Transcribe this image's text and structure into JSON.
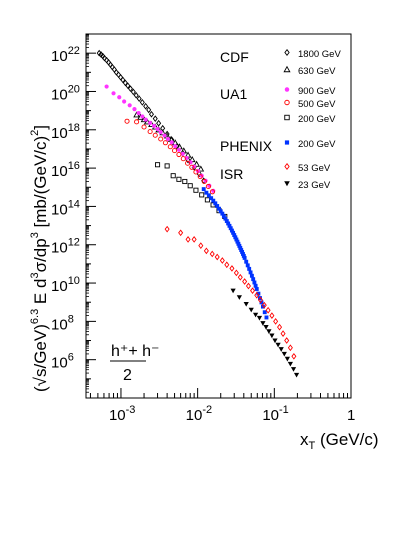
{
  "chart_data": {
    "type": "scatter",
    "title": "",
    "xlabel": "x_T (GeV/c)",
    "ylabel": "(√s/GeV)^6.3 E d³σ/dp³ [mb/(GeV/c)²]",
    "x_scale": "log",
    "y_scale": "log",
    "xlim": [
      0.00035,
      1.0
    ],
    "ylim": [
      10000.0,
      1e+23
    ],
    "grid": false,
    "legend_position": "top-right",
    "formula_label": {
      "numerator": "h⁺+ h⁻",
      "denominator": "2"
    },
    "x_ticks": [
      {
        "value": 0.001,
        "base": "10",
        "exp": "-3"
      },
      {
        "value": 0.01,
        "base": "10",
        "exp": "-2"
      },
      {
        "value": 0.1,
        "base": "10",
        "exp": "-1"
      },
      {
        "value": 1,
        "base": "1",
        "exp": ""
      }
    ],
    "y_ticks": [
      {
        "value": 1000000.0,
        "base": "10",
        "exp": "6"
      },
      {
        "value": 100000000.0,
        "base": "10",
        "exp": "8"
      },
      {
        "value": 10000000000.0,
        "base": "10",
        "exp": "10"
      },
      {
        "value": 1000000000000.0,
        "base": "10",
        "exp": "12"
      },
      {
        "value": 100000000000000.0,
        "base": "10",
        "exp": "14"
      },
      {
        "value": 1e+16,
        "base": "10",
        "exp": "16"
      },
      {
        "value": 1e+18,
        "base": "10",
        "exp": "18"
      },
      {
        "value": 1e+20,
        "base": "10",
        "exp": "20"
      },
      {
        "value": 1e+22,
        "base": "10",
        "exp": "22"
      }
    ],
    "legend_groups": [
      {
        "group": "CDF",
        "entries": [
          "cdf1800",
          "cdf630"
        ]
      },
      {
        "group": "UA1",
        "entries": [
          "ua900",
          "ua500",
          "ua200"
        ]
      },
      {
        "group": "PHENIX",
        "entries": [
          "phenix200"
        ]
      },
      {
        "group": "ISR",
        "entries": [
          "isr53",
          "isr23"
        ]
      }
    ],
    "series": [
      {
        "id": "cdf1800",
        "name": "1800 GeV",
        "marker": "open-diamond",
        "color": "#000000",
        "x": [
          0.00052,
          0.00055,
          0.00058,
          0.00061,
          0.00065,
          0.00069,
          0.00073,
          0.00077,
          0.00082,
          0.00087,
          0.00093,
          0.00099,
          0.00106,
          0.00114,
          0.00123,
          0.00133,
          0.00145,
          0.00158,
          0.00173,
          0.0019,
          0.0021,
          0.0023,
          0.0025,
          0.0028,
          0.0031,
          0.0035,
          0.004,
          0.0046,
          0.0054,
          0.0064,
          0.0075,
          0.009,
          0.0105,
          0.012
        ],
        "y": [
          1e+22,
          8.5e+21,
          7e+21,
          5.5e+21,
          4.3e+21,
          3.3e+21,
          2.5e+21,
          1.9e+21,
          1.4e+21,
          1e+21,
          7.5e+20,
          5.5e+20,
          4e+20,
          2.8e+20,
          2e+20,
          1.4e+20,
          9.5e+19,
          6.3e+19,
          4.2e+19,
          2.7e+19,
          1.7e+19,
          1.1e+19,
          6.5e+18,
          3.8e+18,
          2.2e+18,
          1.2e+18,
          6e+17,
          3e+17,
          1.4e+17,
          6e+16,
          2.6e+16,
          1.1e+16,
          5000000000000000.0,
          2200000000000000.0
        ]
      },
      {
        "id": "cdf630",
        "name": "630 GeV",
        "marker": "open-triangle",
        "color": "#000000",
        "x": [
          0.0016,
          0.0018,
          0.002,
          0.0022,
          0.0025,
          0.0028,
          0.0031,
          0.0035,
          0.004,
          0.0045,
          0.0051,
          0.0058,
          0.0066,
          0.0075,
          0.0085,
          0.0097,
          0.011
        ],
        "y": [
          6e+18,
          4.5e+18,
          3.4e+18,
          2.6e+18,
          1.9e+18,
          1.4e+18,
          1e+18,
          7e+17,
          4.8e+17,
          3.2e+17,
          2.1e+17,
          1.3e+17,
          8e+16,
          4.8e+16,
          2.8e+16,
          1.6e+16,
          9000000000000000.0
        ]
      },
      {
        "id": "ua900",
        "name": "900 GeV",
        "marker": "filled-circle",
        "color": "#ff33ff",
        "x": [
          0.00065,
          0.0008,
          0.00095,
          0.0011,
          0.0013,
          0.0015,
          0.0017,
          0.0019,
          0.0021,
          0.0024,
          0.0027,
          0.003,
          0.0033,
          0.0037,
          0.0041,
          0.0046,
          0.0051,
          0.0057,
          0.0064,
          0.0072,
          0.0081,
          0.009,
          0.0101,
          0.0113,
          0.0127,
          0.0142,
          0.016
        ],
        "y": [
          1.8e+20,
          8e+19,
          5e+19,
          3e+19,
          1.9e+19,
          1.2e+19,
          7.5e+18,
          5e+18,
          3.4e+18,
          2.3e+18,
          1.6e+18,
          1.1e+18,
          7.5e+17,
          5e+17,
          3.3e+17,
          2.2e+17,
          1.4e+17,
          9e+16,
          5.6e+16,
          3.4e+16,
          2e+16,
          1.2e+16,
          7000000000000000.0,
          4000000000000000.0,
          2200000000000000.0,
          1200000000000000.0,
          650000000000000.0
        ]
      },
      {
        "id": "ua500",
        "name": "500 GeV",
        "marker": "open-circle",
        "color": "#ff0000",
        "x": [
          0.0012,
          0.0016,
          0.002,
          0.0024,
          0.0028,
          0.0033,
          0.0038,
          0.0044,
          0.005,
          0.0057,
          0.0065,
          0.0074,
          0.0084,
          0.0095,
          0.0108,
          0.0122,
          0.0138,
          0.0156
        ],
        "y": [
          2.8e+18,
          2.6e+18,
          1.4e+18,
          8e+17,
          5.2e+17,
          3.3e+17,
          2.1e+17,
          1.3e+17,
          8.2e+16,
          5.1e+16,
          3.1e+16,
          1.8e+16,
          1.1e+16,
          6300000000000000.0,
          3600000000000000.0,
          2000000000000000.0,
          1100000000000000.0,
          580000000000000.0
        ]
      },
      {
        "id": "ua200",
        "name": "200 GeV",
        "marker": "open-square",
        "color": "#000000",
        "x": [
          0.003,
          0.004,
          0.0048,
          0.0057,
          0.0068,
          0.008,
          0.0095,
          0.0113,
          0.0134,
          0.0159,
          0.019,
          0.0226
        ],
        "y": [
          1.5e+16,
          1.3e+16,
          4000000000000000.0,
          2600000000000000.0,
          2000000000000000.0,
          1200000000000000.0,
          700000000000000.0,
          400000000000000.0,
          220000000000000.0,
          120000000000000.0,
          60000000000000.0,
          30000000000000.0
        ]
      },
      {
        "id": "phenix200",
        "name": "200 GeV",
        "marker": "filled-square",
        "color": "#0033ff",
        "x": [
          0.012,
          0.013,
          0.014,
          0.015,
          0.016,
          0.017,
          0.018,
          0.019,
          0.02,
          0.021,
          0.022,
          0.023,
          0.024,
          0.025,
          0.026,
          0.027,
          0.028,
          0.029,
          0.03,
          0.031,
          0.032,
          0.033,
          0.034,
          0.035,
          0.036,
          0.037,
          0.038,
          0.039,
          0.04,
          0.041,
          0.043,
          0.045,
          0.047,
          0.049,
          0.051,
          0.053,
          0.055,
          0.057,
          0.059,
          0.062,
          0.065,
          0.068,
          0.071,
          0.075,
          0.079
        ],
        "y": [
          800000000000000.0,
          520000000000000.0,
          380000000000000.0,
          270000000000000.0,
          200000000000000.0,
          145000000000000.0,
          105000000000000.0,
          76000000000000.0,
          56000000000000.0,
          42000000000000.0,
          31000000000000.0,
          23000000000000.0,
          17200000000000.0,
          12900000000000.0,
          9700000000000.0,
          7300000000000.0,
          5500000000000.0,
          4200000000000.0,
          3200000000000.0,
          2450000000000.0,
          1880000000000.0,
          1450000000000.0,
          1120000000000.0,
          870000000000.0,
          680000000000.0,
          530000000000.0,
          420000000000.0,
          330000000000.0,
          260000000000.0,
          205000000000.0,
          130000000000.0,
          84000000000.0,
          55000000000.0,
          36000000000.0,
          24000000000.0,
          16000000000.0,
          10700000000.0,
          7200000000.0,
          4900000000.0,
          2800000000.0,
          1650000000.0,
          980000000.0,
          590000000.0,
          300000000.0,
          160000000.0
        ]
      },
      {
        "id": "isr53",
        "name": "53 GeV",
        "marker": "open-diamond",
        "color": "#ff0000",
        "x": [
          0.004,
          0.006,
          0.0075,
          0.009,
          0.011,
          0.013,
          0.0155,
          0.018,
          0.021,
          0.024,
          0.028,
          0.032,
          0.036,
          0.041,
          0.046,
          0.052,
          0.059,
          0.066,
          0.074,
          0.083,
          0.093,
          0.104,
          0.117,
          0.13,
          0.145,
          0.162,
          0.18
        ],
        "y": [
          6500000000000.0,
          4200000000000.0,
          1900000000000.0,
          1900000000000.0,
          900000000000.0,
          480000000000.0,
          330000000000.0,
          230000000000.0,
          150000000000.0,
          90000000000.0,
          58000000000.0,
          34000000000.0,
          20000000000.0,
          12000000000.0,
          7000000000.0,
          4000000000.0,
          2300000000.0,
          1300000000.0,
          700000000.0,
          380000000.0,
          200000000.0,
          100000000.0,
          50000000.0,
          23000000.0,
          10000000.0,
          4200000.0,
          1500000.0
        ]
      },
      {
        "id": "isr23",
        "name": "23 GeV",
        "marker": "filled-down-triangle",
        "color": "#000000",
        "x": [
          0.029,
          0.035,
          0.043,
          0.05,
          0.057,
          0.064,
          0.071,
          0.078,
          0.085,
          0.093,
          0.102,
          0.112,
          0.123,
          0.135,
          0.148,
          0.162,
          0.178,
          0.195
        ],
        "y": [
          4000000000.0,
          1800000000.0,
          800000000.0,
          400000000.0,
          220000000.0,
          150000000.0,
          80000000.0,
          50000000.0,
          30000000.0,
          18000000.0,
          10000000.0,
          6000000.0,
          3500000.0,
          2000000.0,
          1100000.0,
          600000.0,
          320000.0,
          160000.0
        ]
      }
    ]
  }
}
